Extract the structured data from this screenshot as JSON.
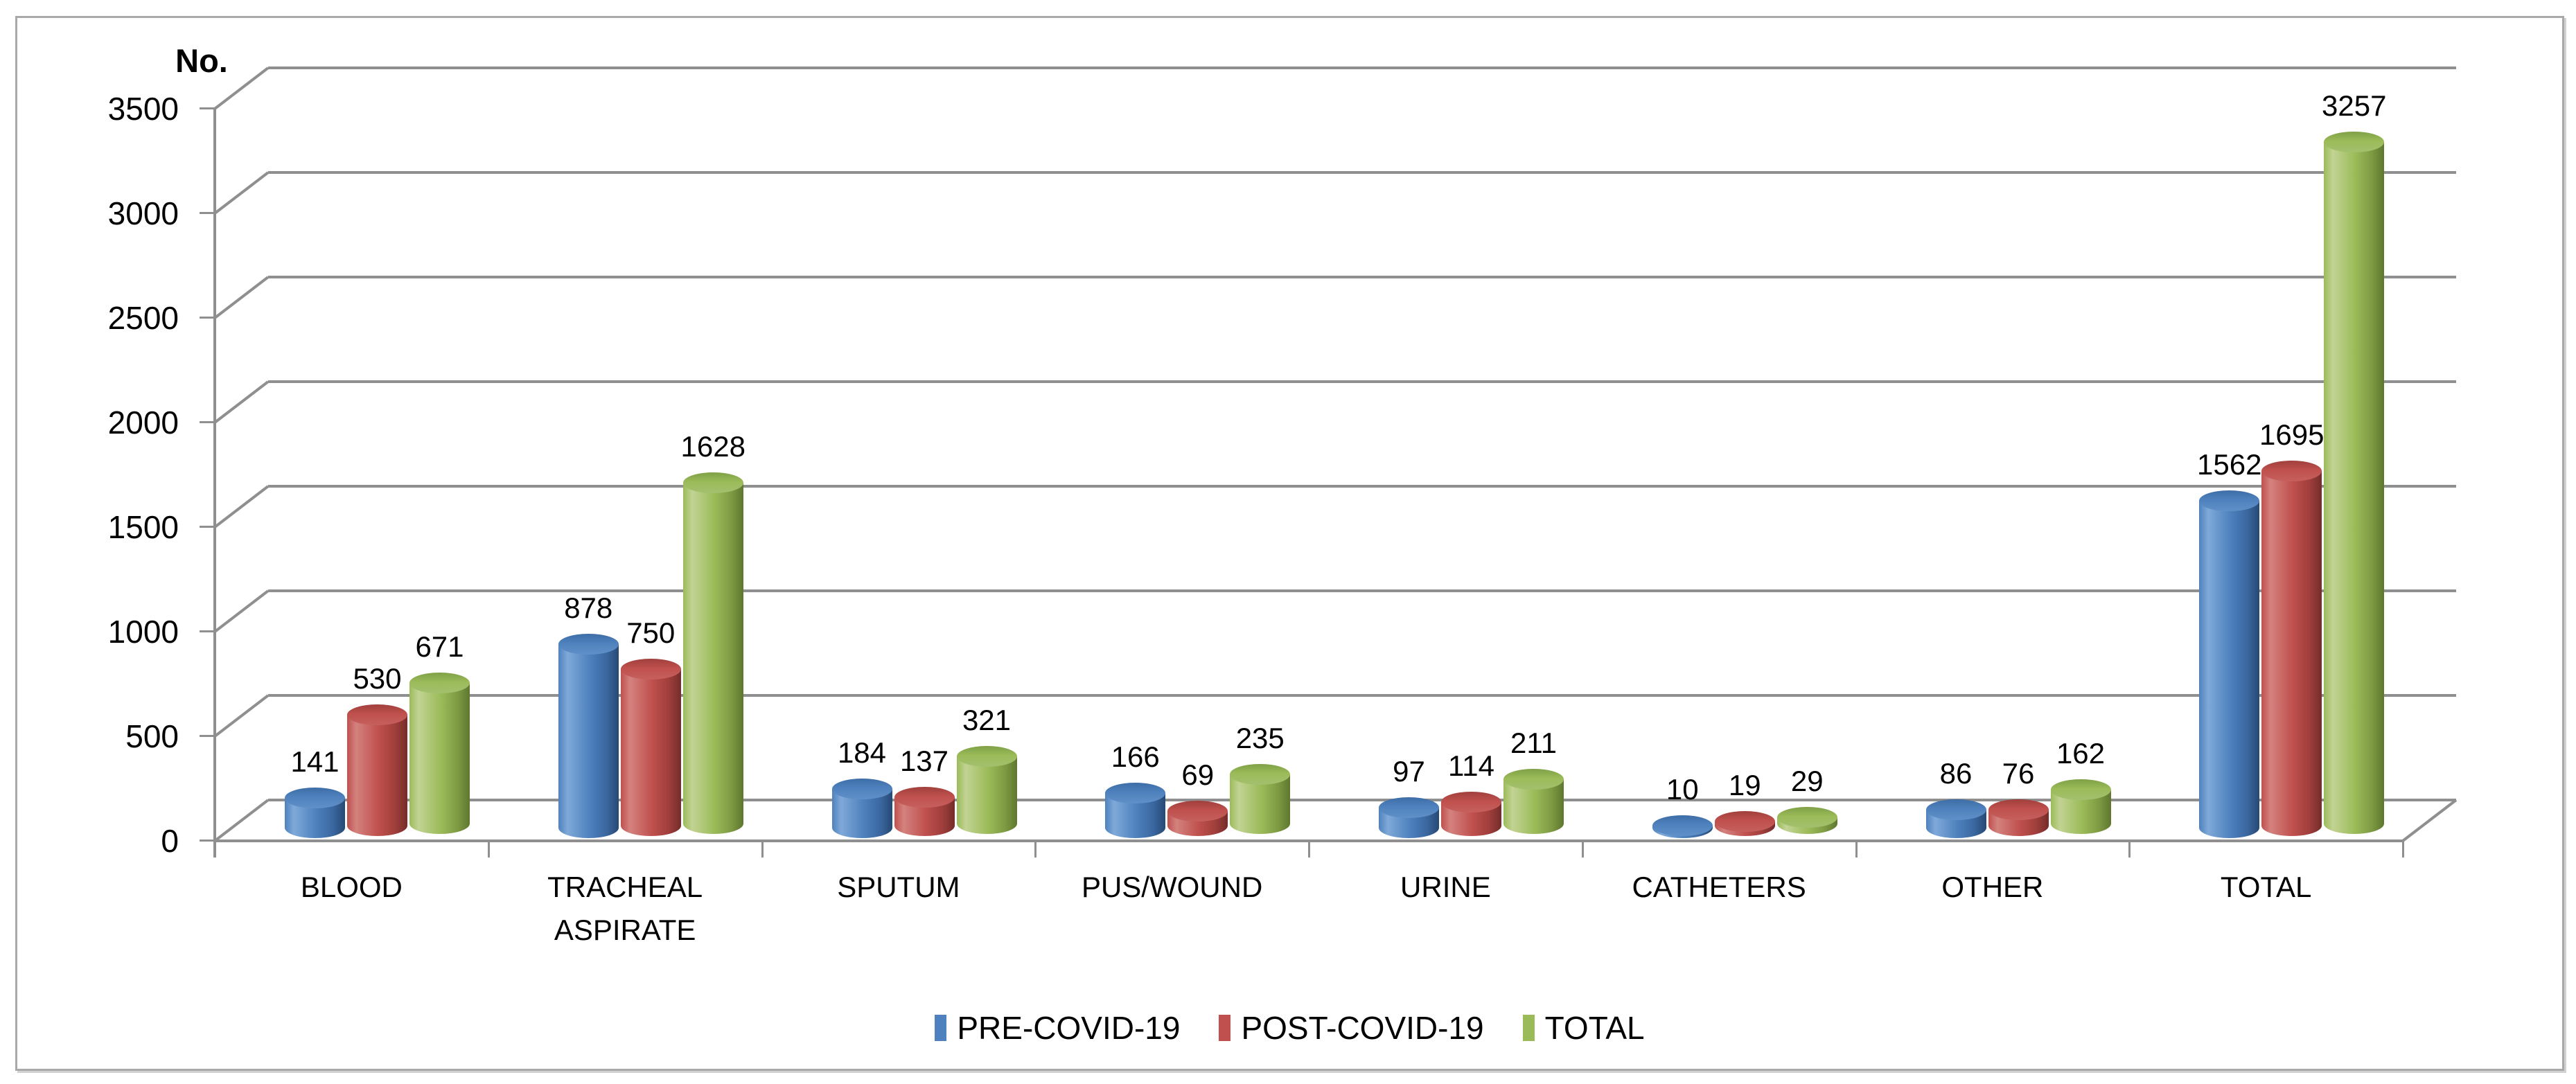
{
  "figure": {
    "axis_title": "No."
  },
  "chart_data": {
    "type": "bar",
    "variant": "3d-cylinder",
    "title": "",
    "xlabel": "",
    "ylabel": "No.",
    "ylim": [
      0,
      3500
    ],
    "ytick_step": 500,
    "yticks": [
      3500,
      3000,
      2500,
      2000,
      1500,
      1000,
      500,
      0
    ],
    "grid": true,
    "legend_position": "bottom",
    "background_color": "#ffffff",
    "gridline_color": "#8f8f8f",
    "categories": [
      "BLOOD",
      "TRACHEAL ASPIRATE",
      "SPUTUM",
      "PUS/WOUND",
      "URINE",
      "CATHETERS",
      "OTHER",
      "TOTAL"
    ],
    "series": [
      {
        "name": "PRE-COVID-19",
        "color": "#4E81BD",
        "color_light": "#7FA9D9",
        "color_dark": "#3A67A0",
        "color_darker": "#274973",
        "cap_dark": "#3E6DA6",
        "cap_light": "#6090C7",
        "values": [
          141,
          878,
          184,
          166,
          97,
          10,
          86,
          1562
        ]
      },
      {
        "name": "POST-COVID-19",
        "color": "#BF504D",
        "color_light": "#D4827F",
        "color_dark": "#9F3E3B",
        "color_darker": "#742C2A",
        "cap_dark": "#A03F3C",
        "cap_light": "#C6605D",
        "values": [
          530,
          750,
          137,
          69,
          114,
          19,
          76,
          1695
        ]
      },
      {
        "name": "TOTAL",
        "color": "#9BBB59",
        "color_light": "#C2D393",
        "color_dark": "#7E9A42",
        "color_darker": "#5E772F",
        "cap_dark": "#7FA045",
        "cap_light": "#A3C06E",
        "values": [
          671,
          1628,
          321,
          235,
          211,
          29,
          162,
          3257
        ]
      }
    ]
  }
}
